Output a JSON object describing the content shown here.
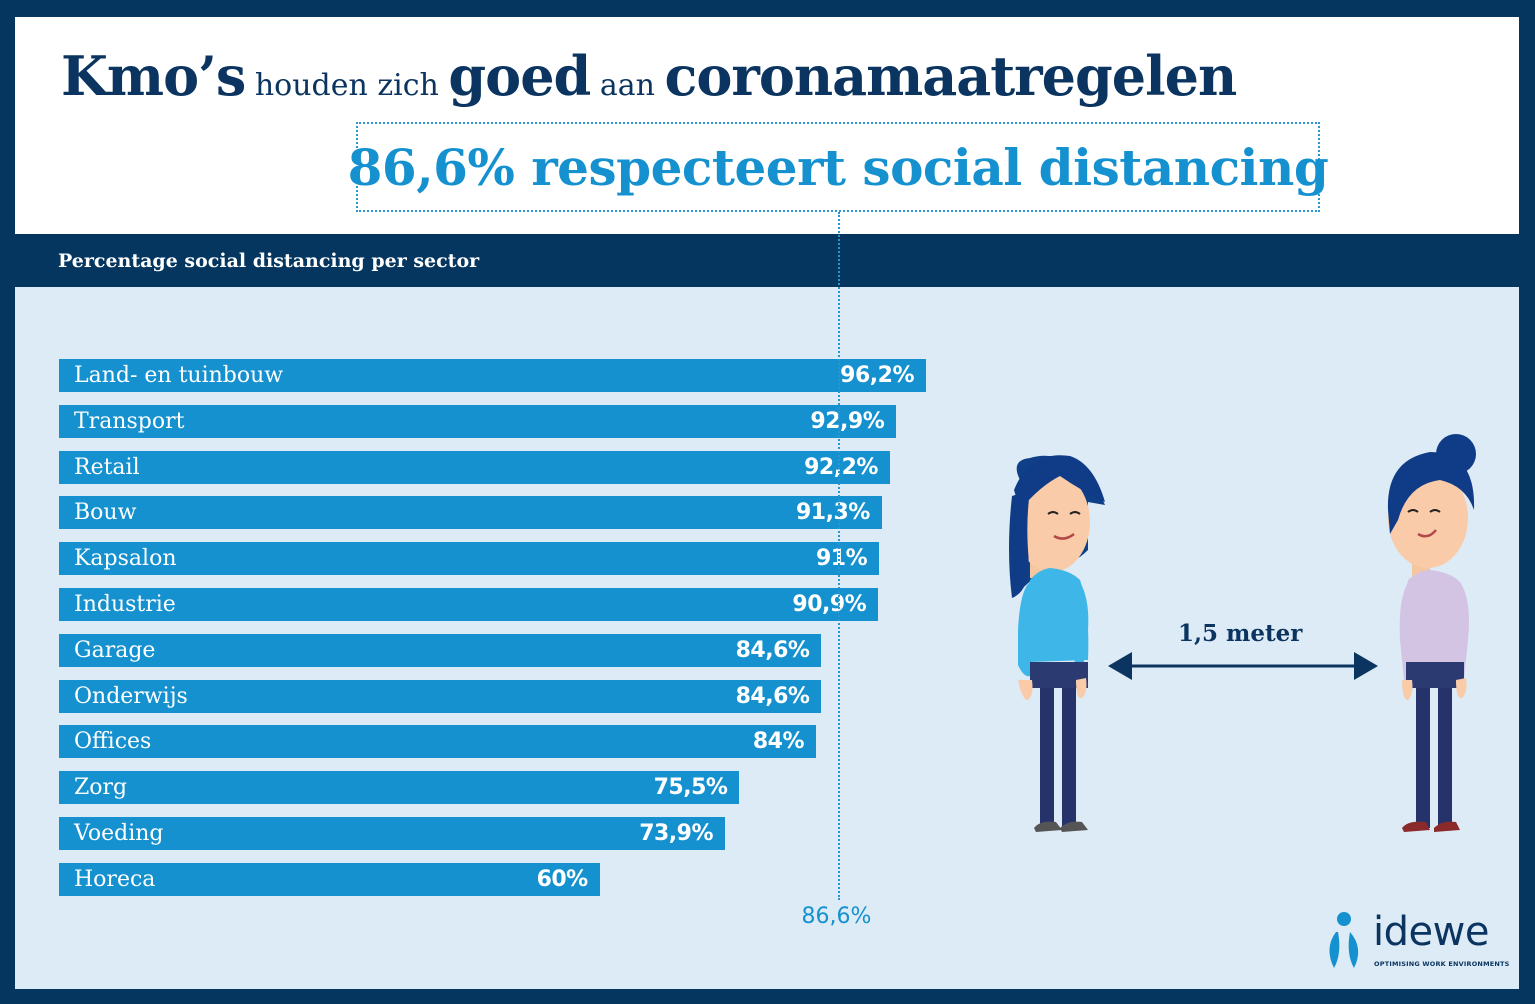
{
  "header": {
    "title_parts": [
      {
        "text": "Kmo’s",
        "style": "strong"
      },
      {
        "text": " houden zich ",
        "style": "light"
      },
      {
        "text": "goed",
        "style": "strong"
      },
      {
        "text": " aan ",
        "style": "light"
      },
      {
        "text": "coronamaatregelen",
        "style": "strong"
      }
    ],
    "highlight": "86,6% respecteert social distancing"
  },
  "illustration": {
    "distance_label": "1,5 meter"
  },
  "brand": {
    "name": "idewe",
    "tagline": "OPTIMISING WORK ENVIRONMENTS"
  },
  "colors": {
    "navy": "#04365f",
    "bar": "#1591cf",
    "panel": "#dcebf5",
    "title": "#0b3560"
  },
  "chart_data": {
    "type": "bar",
    "orientation": "horizontal",
    "title": "Percentage social distancing per sector",
    "categories": [
      "Land- en tuinbouw",
      "Transport",
      "Retail",
      "Bouw",
      "Kapsalon",
      "Industrie",
      "Garage",
      "Onderwijs",
      "Offices",
      "Zorg",
      "Voeding",
      "Horeca"
    ],
    "values": [
      96.2,
      92.9,
      92.2,
      91.3,
      91,
      90.9,
      84.6,
      84.6,
      84,
      75.5,
      73.9,
      60
    ],
    "value_labels": [
      "96,2%",
      "92,9%",
      "92,2%",
      "91,3%",
      "91%",
      "90,9%",
      "84,6%",
      "84,6%",
      "84%",
      "75,5%",
      "73,9%",
      "60%"
    ],
    "reference_line": {
      "value": 86.6,
      "label": "86,6%"
    },
    "xlim": [
      0,
      100
    ],
    "grid": false,
    "legend": "none"
  }
}
